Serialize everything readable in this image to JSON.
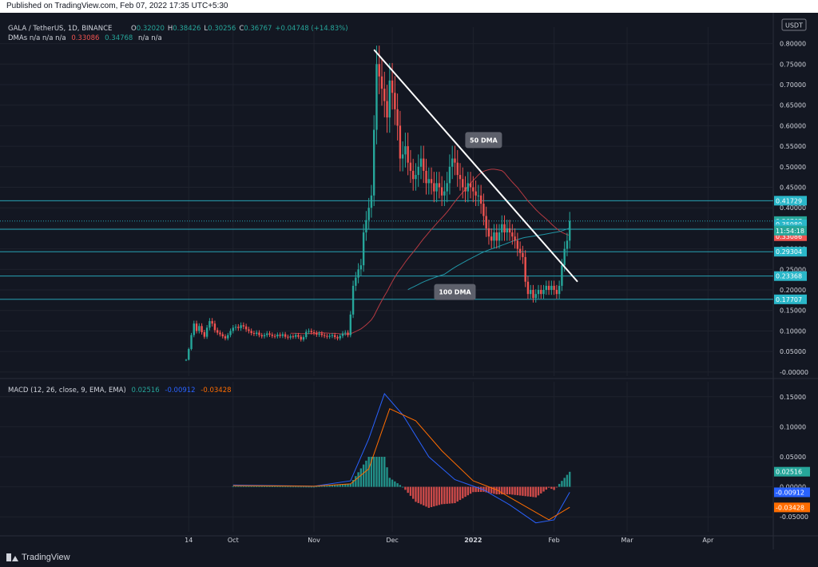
{
  "header": {
    "published_text": "Published on TradingView.com, Feb 07, 2022 17:35 UTC+5:30"
  },
  "footer": {
    "brand": "TradingView"
  },
  "legend": {
    "symbol": "GALA / TetherUS, 1D, BINANCE",
    "ohlc": [
      {
        "k": "O",
        "v": "0.32020"
      },
      {
        "k": "H",
        "v": "0.38426"
      },
      {
        "k": "L",
        "v": "0.30256"
      },
      {
        "k": "C",
        "v": "0.36767"
      }
    ],
    "change": "+0.04748 (+14.83%)",
    "dma_prefix": "DMAs n/a n/a n/a",
    "dma_v1": "0.33086",
    "dma_v2": "0.34768",
    "dma_suffix": "n/a n/a",
    "macd_label": "MACD (12, 26, close, 9, EMA, EMA)",
    "macd_v1": "0.02516",
    "macd_v2": "-0.00912",
    "macd_v3": "-0.03428"
  },
  "colors": {
    "bg": "#131722",
    "up": "#26a69a",
    "down": "#ef5350",
    "fifty_dma": "#b63a42",
    "hundred_dma": "#2196a6",
    "hline": "#2ab7c9",
    "trendline": "#ffffff",
    "macd": "#2962ff",
    "signal": "#ff6d00",
    "text": "#d1d4dc",
    "muted": "#787b86"
  },
  "chart_data": [
    {
      "type": "candlestick",
      "title": "GALA / TetherUS, 1D, BINANCE",
      "currency": "USDT",
      "ylim": [
        -0.01,
        0.84
      ],
      "y_ticks": [
        "0.80000",
        "0.75000",
        "0.70000",
        "0.65000",
        "0.60000",
        "0.55000",
        "0.50000",
        "0.45000",
        "0.40000",
        "0.35000",
        "0.30000",
        "0.25000",
        "0.20000",
        "0.15000",
        "0.10000",
        "0.05000",
        "-0.00000"
      ],
      "x_ticks": [
        "14",
        "Oct",
        "Nov",
        "Dec",
        "2022",
        "Feb",
        "Mar",
        "Apr"
      ],
      "x_range": [
        "2021-09-13",
        "2022-04-26"
      ],
      "closes": [
        {
          "date": "2021-09-13",
          "c": 0.03
        },
        {
          "date": "2021-09-14",
          "c": 0.056
        },
        {
          "date": "2021-09-15",
          "c": 0.09
        },
        {
          "date": "2021-09-16",
          "c": 0.118
        },
        {
          "date": "2021-09-17",
          "c": 0.1
        },
        {
          "date": "2021-09-18",
          "c": 0.112
        },
        {
          "date": "2021-09-19",
          "c": 0.097
        },
        {
          "date": "2021-09-20",
          "c": 0.086
        },
        {
          "date": "2021-09-21",
          "c": 0.108
        },
        {
          "date": "2021-09-22",
          "c": 0.124
        },
        {
          "date": "2021-09-23",
          "c": 0.118
        },
        {
          "date": "2021-09-24",
          "c": 0.102
        },
        {
          "date": "2021-09-25",
          "c": 0.096
        },
        {
          "date": "2021-09-26",
          "c": 0.092
        },
        {
          "date": "2021-09-27",
          "c": 0.087
        },
        {
          "date": "2021-09-28",
          "c": 0.082
        },
        {
          "date": "2021-09-29",
          "c": 0.09
        },
        {
          "date": "2021-09-30",
          "c": 0.1
        },
        {
          "date": "2021-10-01",
          "c": 0.108
        },
        {
          "date": "2021-10-02",
          "c": 0.11
        },
        {
          "date": "2021-10-03",
          "c": 0.107
        },
        {
          "date": "2021-10-04",
          "c": 0.114
        },
        {
          "date": "2021-10-05",
          "c": 0.111
        },
        {
          "date": "2021-10-06",
          "c": 0.104
        },
        {
          "date": "2021-10-07",
          "c": 0.1
        },
        {
          "date": "2021-10-08",
          "c": 0.095
        },
        {
          "date": "2021-10-09",
          "c": 0.093
        },
        {
          "date": "2021-10-10",
          "c": 0.096
        },
        {
          "date": "2021-10-11",
          "c": 0.09
        },
        {
          "date": "2021-10-12",
          "c": 0.087
        },
        {
          "date": "2021-10-13",
          "c": 0.09
        },
        {
          "date": "2021-10-14",
          "c": 0.094
        },
        {
          "date": "2021-10-15",
          "c": 0.091
        },
        {
          "date": "2021-10-16",
          "c": 0.088
        },
        {
          "date": "2021-10-17",
          "c": 0.087
        },
        {
          "date": "2021-10-18",
          "c": 0.091
        },
        {
          "date": "2021-10-19",
          "c": 0.088
        },
        {
          "date": "2021-10-20",
          "c": 0.092
        },
        {
          "date": "2021-10-21",
          "c": 0.086
        },
        {
          "date": "2021-10-22",
          "c": 0.084
        },
        {
          "date": "2021-10-23",
          "c": 0.087
        },
        {
          "date": "2021-10-24",
          "c": 0.086
        },
        {
          "date": "2021-10-25",
          "c": 0.09
        },
        {
          "date": "2021-10-26",
          "c": 0.086
        },
        {
          "date": "2021-10-27",
          "c": 0.079
        },
        {
          "date": "2021-10-28",
          "c": 0.085
        },
        {
          "date": "2021-10-29",
          "c": 0.098
        },
        {
          "date": "2021-10-30",
          "c": 0.1
        },
        {
          "date": "2021-10-31",
          "c": 0.097
        },
        {
          "date": "2021-11-01",
          "c": 0.095
        },
        {
          "date": "2021-11-02",
          "c": 0.091
        },
        {
          "date": "2021-11-03",
          "c": 0.094
        },
        {
          "date": "2021-11-04",
          "c": 0.09
        },
        {
          "date": "2021-11-05",
          "c": 0.088
        },
        {
          "date": "2021-11-06",
          "c": 0.086
        },
        {
          "date": "2021-11-07",
          "c": 0.088
        },
        {
          "date": "2021-11-08",
          "c": 0.09
        },
        {
          "date": "2021-11-09",
          "c": 0.085
        },
        {
          "date": "2021-11-10",
          "c": 0.082
        },
        {
          "date": "2021-11-11",
          "c": 0.088
        },
        {
          "date": "2021-11-12",
          "c": 0.094
        },
        {
          "date": "2021-11-13",
          "c": 0.096
        },
        {
          "date": "2021-11-14",
          "c": 0.09
        },
        {
          "date": "2021-11-15",
          "c": 0.14
        },
        {
          "date": "2021-11-16",
          "c": 0.21
        },
        {
          "date": "2021-11-17",
          "c": 0.23
        },
        {
          "date": "2021-11-18",
          "c": 0.25
        },
        {
          "date": "2021-11-19",
          "c": 0.26
        },
        {
          "date": "2021-11-20",
          "c": 0.34
        },
        {
          "date": "2021-11-21",
          "c": 0.37
        },
        {
          "date": "2021-11-22",
          "c": 0.4
        },
        {
          "date": "2021-11-23",
          "c": 0.43
        },
        {
          "date": "2021-11-24",
          "c": 0.59
        },
        {
          "date": "2021-11-25",
          "c": 0.75
        },
        {
          "date": "2021-11-26",
          "c": 0.72
        },
        {
          "date": "2021-11-27",
          "c": 0.69
        },
        {
          "date": "2021-11-28",
          "c": 0.66
        },
        {
          "date": "2021-11-29",
          "c": 0.62
        },
        {
          "date": "2021-11-30",
          "c": 0.71
        },
        {
          "date": "2021-12-01",
          "c": 0.68
        },
        {
          "date": "2021-12-02",
          "c": 0.64
        },
        {
          "date": "2021-12-03",
          "c": 0.6
        },
        {
          "date": "2021-12-04",
          "c": 0.52
        },
        {
          "date": "2021-12-05",
          "c": 0.53
        },
        {
          "date": "2021-12-06",
          "c": 0.55
        },
        {
          "date": "2021-12-07",
          "c": 0.51
        },
        {
          "date": "2021-12-08",
          "c": 0.49
        },
        {
          "date": "2021-12-09",
          "c": 0.47
        },
        {
          "date": "2021-12-10",
          "c": 0.48
        },
        {
          "date": "2021-12-11",
          "c": 0.5
        },
        {
          "date": "2021-12-12",
          "c": 0.52
        },
        {
          "date": "2021-12-13",
          "c": 0.49
        },
        {
          "date": "2021-12-14",
          "c": 0.46
        },
        {
          "date": "2021-12-15",
          "c": 0.47
        },
        {
          "date": "2021-12-16",
          "c": 0.46
        },
        {
          "date": "2021-12-17",
          "c": 0.44
        },
        {
          "date": "2021-12-18",
          "c": 0.46
        },
        {
          "date": "2021-12-19",
          "c": 0.45
        },
        {
          "date": "2021-12-20",
          "c": 0.43
        },
        {
          "date": "2021-12-21",
          "c": 0.44
        },
        {
          "date": "2021-12-22",
          "c": 0.46
        },
        {
          "date": "2021-12-23",
          "c": 0.5
        },
        {
          "date": "2021-12-24",
          "c": 0.52
        },
        {
          "date": "2021-12-25",
          "c": 0.51
        },
        {
          "date": "2021-12-26",
          "c": 0.48
        },
        {
          "date": "2021-12-27",
          "c": 0.47
        },
        {
          "date": "2021-12-28",
          "c": 0.45
        },
        {
          "date": "2021-12-29",
          "c": 0.44
        },
        {
          "date": "2021-12-30",
          "c": 0.46
        },
        {
          "date": "2021-12-31",
          "c": 0.45
        },
        {
          "date": "2022-01-01",
          "c": 0.44
        },
        {
          "date": "2022-01-02",
          "c": 0.43
        },
        {
          "date": "2022-01-03",
          "c": 0.43
        },
        {
          "date": "2022-01-04",
          "c": 0.41
        },
        {
          "date": "2022-01-05",
          "c": 0.38
        },
        {
          "date": "2022-01-06",
          "c": 0.35
        },
        {
          "date": "2022-01-07",
          "c": 0.33
        },
        {
          "date": "2022-01-08",
          "c": 0.32
        },
        {
          "date": "2022-01-09",
          "c": 0.34
        },
        {
          "date": "2022-01-10",
          "c": 0.32
        },
        {
          "date": "2022-01-11",
          "c": 0.34
        },
        {
          "date": "2022-01-12",
          "c": 0.36
        },
        {
          "date": "2022-01-13",
          "c": 0.34
        },
        {
          "date": "2022-01-14",
          "c": 0.35
        },
        {
          "date": "2022-01-15",
          "c": 0.34
        },
        {
          "date": "2022-01-16",
          "c": 0.33
        },
        {
          "date": "2022-01-17",
          "c": 0.32
        },
        {
          "date": "2022-01-18",
          "c": 0.3
        },
        {
          "date": "2022-01-19",
          "c": 0.29
        },
        {
          "date": "2022-01-20",
          "c": 0.28
        },
        {
          "date": "2022-01-21",
          "c": 0.22
        },
        {
          "date": "2022-01-22",
          "c": 0.19
        },
        {
          "date": "2022-01-23",
          "c": 0.2
        },
        {
          "date": "2022-01-24",
          "c": 0.18
        },
        {
          "date": "2022-01-25",
          "c": 0.19
        },
        {
          "date": "2022-01-26",
          "c": 0.2
        },
        {
          "date": "2022-01-27",
          "c": 0.19
        },
        {
          "date": "2022-01-28",
          "c": 0.2
        },
        {
          "date": "2022-01-29",
          "c": 0.21
        },
        {
          "date": "2022-01-30",
          "c": 0.2
        },
        {
          "date": "2022-01-31",
          "c": 0.21
        },
        {
          "date": "2022-02-01",
          "c": 0.2
        },
        {
          "date": "2022-02-02",
          "c": 0.19
        },
        {
          "date": "2022-02-03",
          "c": 0.21
        },
        {
          "date": "2022-02-04",
          "c": 0.26
        },
        {
          "date": "2022-02-05",
          "c": 0.3
        },
        {
          "date": "2022-02-06",
          "c": 0.32
        },
        {
          "date": "2022-02-07",
          "c": 0.368
        }
      ],
      "horizontal_levels": [
        {
          "value": 0.41729,
          "label": "0.41729"
        },
        {
          "value": 0.36767,
          "label": "0.36767"
        },
        {
          "value": 0.3598,
          "label": "0.35980"
        },
        {
          "value": 0.34768,
          "label": "0.34768"
        },
        {
          "value": 0.33086,
          "label": "0.33086"
        },
        {
          "value": 0.29304,
          "label": "0.29304"
        },
        {
          "value": 0.23368,
          "label": "0.23368"
        },
        {
          "value": 0.17707,
          "label": "0.17707"
        }
      ],
      "price_label": "0.36767",
      "countdown": "11:54:18",
      "trendline": [
        {
          "date": "2021-11-24",
          "value": 0.785
        },
        {
          "date": "2022-02-10",
          "value": 0.22
        }
      ],
      "annotations": [
        {
          "text": "50 DMA",
          "at": {
            "date": "2022-01-05",
            "value": 0.565
          }
        },
        {
          "text": "100 DMA",
          "at": {
            "date": "2021-12-25",
            "value": 0.195
          }
        }
      ]
    },
    {
      "type": "line",
      "title": "MACD (12, 26, close, 9, EMA, EMA)",
      "ylim": [
        -0.075,
        0.175
      ],
      "y_ticks": [
        "0.15000",
        "0.10000",
        "0.05000",
        "0.00000",
        "-0.05000"
      ],
      "series_values": [
        {
          "date": "2021-10-01",
          "v": 0.003
        },
        {
          "date": "2021-11-01",
          "v": 0.001
        },
        {
          "date": "2021-11-15",
          "v": 0.01
        },
        {
          "date": "2021-11-22",
          "v": 0.08
        },
        {
          "date": "2021-11-28",
          "v": 0.155
        },
        {
          "date": "2021-12-05",
          "v": 0.12
        },
        {
          "date": "2021-12-15",
          "v": 0.05
        },
        {
          "date": "2021-12-25",
          "v": 0.012
        },
        {
          "date": "2022-01-05",
          "v": -0.005
        },
        {
          "date": "2022-01-15",
          "v": -0.03
        },
        {
          "date": "2022-01-25",
          "v": -0.06
        },
        {
          "date": "2022-02-01",
          "v": -0.055
        },
        {
          "date": "2022-02-07",
          "v": -0.009
        }
      ],
      "signal_values": [
        {
          "date": "2021-10-01",
          "v": 0.002
        },
        {
          "date": "2021-11-01",
          "v": 0.001
        },
        {
          "date": "2021-11-15",
          "v": 0.005
        },
        {
          "date": "2021-11-22",
          "v": 0.03
        },
        {
          "date": "2021-11-30",
          "v": 0.13
        },
        {
          "date": "2021-12-10",
          "v": 0.11
        },
        {
          "date": "2021-12-20",
          "v": 0.06
        },
        {
          "date": "2022-01-01",
          "v": 0.01
        },
        {
          "date": "2022-01-10",
          "v": -0.005
        },
        {
          "date": "2022-01-20",
          "v": -0.03
        },
        {
          "date": "2022-01-30",
          "v": -0.055
        },
        {
          "date": "2022-02-07",
          "v": -0.034
        }
      ],
      "histogram_last": 0.02516
    }
  ]
}
